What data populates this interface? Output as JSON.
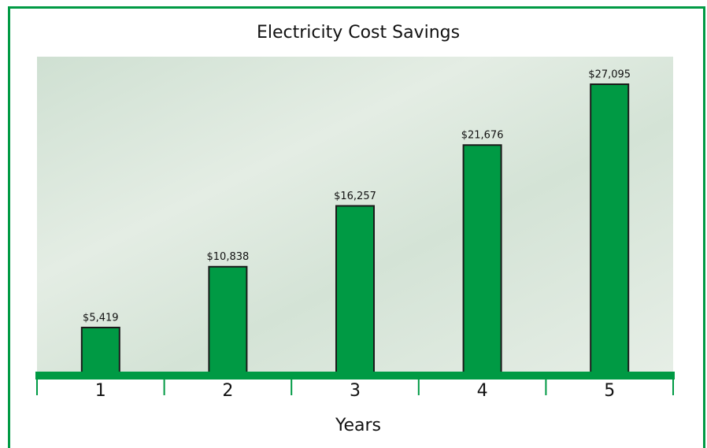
{
  "chart_data": {
    "type": "bar",
    "title": "Electricity Cost Savings",
    "x_label": "Years",
    "categories": [
      "1",
      "2",
      "3",
      "4",
      "5"
    ],
    "values": [
      5419,
      10838,
      16257,
      21676,
      27095
    ],
    "value_labels": [
      "$5,419",
      "$10,838",
      "$16,257",
      "$21,676",
      "$27,095"
    ],
    "color": "#009a44",
    "ylim": [
      1350,
      29550
    ]
  }
}
